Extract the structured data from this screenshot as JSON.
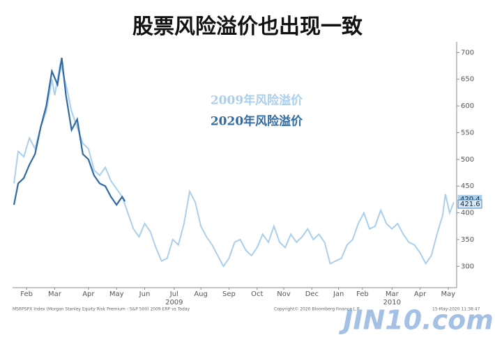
{
  "chart_data": {
    "type": "line",
    "title": "股票风险溢价也出现一致",
    "xlim": [
      1.0,
      16.8
    ],
    "xticks": [
      {
        "value": 1.5,
        "label": "Feb"
      },
      {
        "value": 2.5,
        "label": "Mar"
      },
      {
        "value": 3.7,
        "label": "Apr"
      },
      {
        "value": 4.7,
        "label": "May"
      },
      {
        "value": 5.7,
        "label": "Jun"
      },
      {
        "value": 6.75,
        "label": "Jul"
      },
      {
        "value": 7.7,
        "label": "Aug"
      },
      {
        "value": 8.7,
        "label": "Sep"
      },
      {
        "value": 9.7,
        "label": "Oct"
      },
      {
        "value": 10.65,
        "label": "Nov"
      },
      {
        "value": 11.65,
        "label": "Dec"
      },
      {
        "value": 12.6,
        "label": "Jan"
      },
      {
        "value": 13.45,
        "label": "Feb"
      },
      {
        "value": 14.5,
        "label": "Mar"
      },
      {
        "value": 15.5,
        "label": "Apr"
      },
      {
        "value": 16.5,
        "label": "May"
      }
    ],
    "year_labels": [
      {
        "value": 6.75,
        "label": "2009"
      },
      {
        "value": 14.5,
        "label": "2010"
      }
    ],
    "ylim": [
      260,
      720
    ],
    "yticks": [
      300,
      350,
      400,
      450,
      500,
      550,
      600,
      650,
      700
    ],
    "series": [
      {
        "name": "2009年风险溢价",
        "color": "#a9cfee",
        "x": [
          1.05,
          1.2,
          1.4,
          1.6,
          1.8,
          2.0,
          2.2,
          2.4,
          2.5,
          2.7,
          2.9,
          3.1,
          3.3,
          3.5,
          3.7,
          3.9,
          4.1,
          4.3,
          4.5,
          4.7,
          4.9,
          5.1,
          5.3,
          5.5,
          5.7,
          5.9,
          6.1,
          6.3,
          6.5,
          6.7,
          6.9,
          7.1,
          7.3,
          7.5,
          7.7,
          7.9,
          8.1,
          8.3,
          8.5,
          8.7,
          8.9,
          9.1,
          9.3,
          9.5,
          9.7,
          9.9,
          10.1,
          10.3,
          10.5,
          10.7,
          10.9,
          11.1,
          11.3,
          11.5,
          11.7,
          11.9,
          12.1,
          12.3,
          12.5,
          12.7,
          12.9,
          13.1,
          13.3,
          13.5,
          13.7,
          13.9,
          14.1,
          14.3,
          14.5,
          14.7,
          14.9,
          15.1,
          15.3,
          15.5,
          15.7,
          15.9,
          16.1,
          16.3,
          16.4,
          16.55,
          16.7
        ],
        "values": [
          455,
          515,
          505,
          540,
          520,
          560,
          590,
          650,
          620,
          680,
          640,
          590,
          560,
          530,
          520,
          480,
          470,
          485,
          460,
          445,
          430,
          400,
          370,
          355,
          380,
          365,
          335,
          310,
          315,
          350,
          340,
          380,
          440,
          420,
          375,
          355,
          340,
          320,
          300,
          315,
          345,
          350,
          330,
          320,
          335,
          360,
          345,
          375,
          345,
          335,
          360,
          345,
          355,
          370,
          350,
          360,
          345,
          305,
          310,
          315,
          340,
          350,
          380,
          400,
          370,
          375,
          405,
          380,
          370,
          380,
          360,
          345,
          340,
          325,
          305,
          320,
          360,
          395,
          435,
          400,
          420
        ],
        "end_label": "420.4"
      },
      {
        "name": "2020年风险溢价",
        "color": "#2f6aa3",
        "x": [
          1.05,
          1.2,
          1.4,
          1.6,
          1.8,
          2.0,
          2.2,
          2.4,
          2.6,
          2.75,
          2.9,
          3.1,
          3.3,
          3.5,
          3.7,
          3.9,
          4.1,
          4.3,
          4.5,
          4.7,
          4.9,
          5.0
        ],
        "values": [
          415,
          455,
          465,
          490,
          510,
          560,
          600,
          665,
          640,
          690,
          620,
          555,
          575,
          510,
          500,
          470,
          455,
          450,
          430,
          415,
          430,
          421.6
        ],
        "end_label": "421.6"
      }
    ],
    "footer_left": "MSRPSPX Index (Morgan Stanley Equity Risk Premium - S&P 500) 2009 ERP vs Today",
    "footer_mid": "Copyright© 2020 Bloomberg Finance L.P.",
    "footer_right": "15-May-2020 11:38:47",
    "watermark": "JIN10.com"
  }
}
